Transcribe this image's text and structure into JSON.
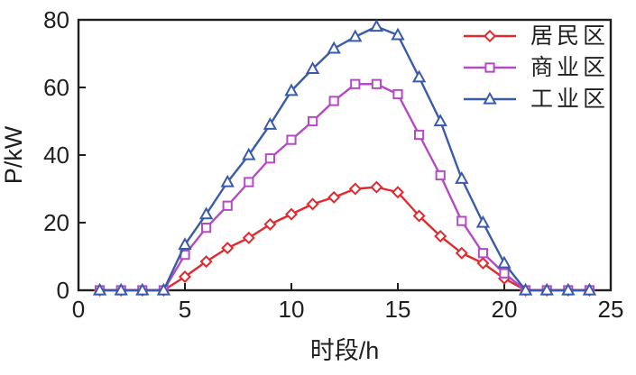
{
  "chart_data": {
    "type": "line",
    "title": "",
    "xlabel": "时段/h",
    "ylabel": "P/kW",
    "xlim": [
      0,
      25
    ],
    "ylim": [
      0,
      80
    ],
    "x_ticks": [
      0,
      5,
      10,
      15,
      20,
      25
    ],
    "y_ticks": [
      0,
      20,
      40,
      60,
      80
    ],
    "grid": false,
    "legend_position": "top-right-inside",
    "x": [
      1,
      2,
      3,
      4,
      5,
      6,
      7,
      8,
      9,
      10,
      11,
      12,
      13,
      14,
      15,
      16,
      17,
      18,
      19,
      20,
      21,
      22,
      23,
      24
    ],
    "series": [
      {
        "name": "居民区",
        "marker": "diamond",
        "color": "#E02A30",
        "values": [
          0,
          0,
          0,
          0,
          4,
          8.5,
          12.5,
          15.5,
          19.5,
          22.5,
          25.5,
          27.5,
          30,
          30.5,
          29,
          22,
          16,
          11,
          8,
          3.5,
          0,
          0,
          0,
          0
        ]
      },
      {
        "name": "商业区",
        "marker": "square",
        "color": "#B44BC4",
        "values": [
          0,
          0,
          0,
          0,
          10.5,
          18.5,
          25,
          32,
          39,
          44.5,
          50,
          56,
          61,
          61,
          58,
          46,
          34,
          20.5,
          11,
          5,
          0,
          0,
          0,
          0
        ]
      },
      {
        "name": "工业区",
        "marker": "triangle",
        "color": "#3A5BA9",
        "values": [
          0,
          0,
          0,
          0,
          13.5,
          22.5,
          32,
          40,
          49,
          59,
          65.5,
          71.5,
          75,
          78,
          75.5,
          63,
          50,
          33,
          20,
          8,
          0,
          0,
          0,
          0
        ]
      }
    ],
    "axis_color": "#1f1f1f"
  }
}
